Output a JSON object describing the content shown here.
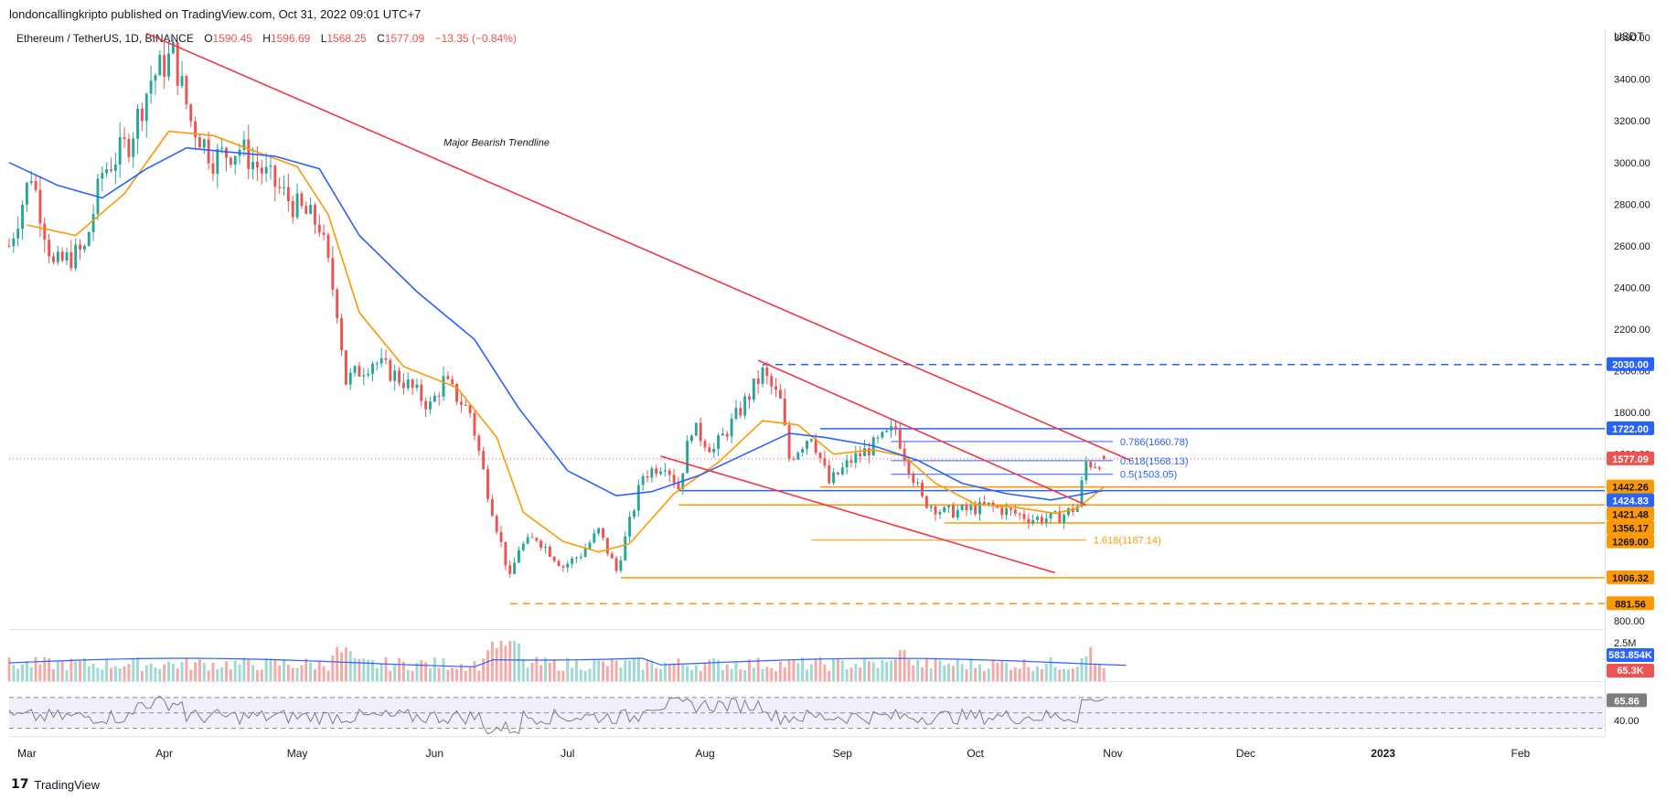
{
  "header": {
    "published_by": "londoncallingkripto published on TradingView.com, Oct 31, 2022 09:01 UTC+7"
  },
  "legend": {
    "symbol": "Ethereum / TetherUS, 1D, BINANCE",
    "open_label": "O",
    "open": "1590.45",
    "high_label": "H",
    "high": "1596.69",
    "low_label": "L",
    "low": "1568.25",
    "close_label": "C",
    "close": "1577.09",
    "change": "−13.35 (−0.84%)"
  },
  "y_axis": {
    "unit": "USDT",
    "ticks": [
      "3600.00",
      "3400.00",
      "3200.00",
      "3000.00",
      "2800.00",
      "2600.00",
      "2400.00",
      "2200.00",
      "2000.00",
      "1800.00",
      "1600.00",
      "800.00"
    ]
  },
  "price_badges": [
    {
      "value": "2030.00",
      "color": "#2962ff"
    },
    {
      "value": "1722.00",
      "color": "#2962ff"
    },
    {
      "value": "1577.09",
      "color": "#ef5350"
    },
    {
      "value": "1442.26",
      "color": "#ff9800"
    },
    {
      "value": "1424.83",
      "color": "#2962ff"
    },
    {
      "value": "1421.48",
      "color": "#ff9800"
    },
    {
      "value": "1356.17",
      "color": "#ff9800"
    },
    {
      "value": "1269.00",
      "color": "#ff9800"
    },
    {
      "value": "1006.32",
      "color": "#ff9800"
    },
    {
      "value": "881.56",
      "color": "#ff9800"
    }
  ],
  "annotations": {
    "trendline": "Major Bearish Trendline",
    "fib_786": "0.786(1660.78)",
    "fib_618": "0.618(1568.13)",
    "fib_5": "0.5(1503.05)",
    "fib_1618": "1.618(1187.14)"
  },
  "volume": {
    "tick": "2.5M",
    "ma_badge": "583.854K",
    "last_badge": "65.3K"
  },
  "rsi": {
    "value_badge": "65.86",
    "tick": "40.00"
  },
  "x_axis": {
    "labels": [
      "Mar",
      "Apr",
      "May",
      "Jun",
      "Jul",
      "Aug",
      "Sep",
      "Oct",
      "Nov",
      "Dec",
      "2023",
      "Feb"
    ]
  },
  "footer": {
    "logo": "17",
    "brand": "TradingView"
  },
  "colors": {
    "up": "#26a69a",
    "down": "#ef5350",
    "trendline": "#f23645",
    "ma_fast": "#ff9800",
    "ma_slow": "#2962ff",
    "fib": "#2962ff",
    "level_orange": "#ff9800",
    "rsi_line": "#7e7e7e"
  },
  "chart_data": {
    "type": "candlestick",
    "title": "Ethereum / TetherUS, 1D, BINANCE",
    "y_unit": "USDT",
    "ylim": [
      760,
      3640
    ],
    "x_range": [
      "2022-02-25",
      "2023-02-20"
    ],
    "x_tick_labels": [
      "Mar",
      "Apr",
      "May",
      "Jun",
      "Jul",
      "Aug",
      "Sep",
      "Oct",
      "Nov",
      "Dec",
      "2023",
      "Feb"
    ],
    "last_candle": {
      "date": "2022-10-30",
      "open": 1590.45,
      "high": 1596.69,
      "low": 1568.25,
      "close": 1577.09
    },
    "anchor_closes": [
      [
        "2022-02-25",
        2600
      ],
      [
        "2022-03-02",
        2950
      ],
      [
        "2022-03-07",
        2500
      ],
      [
        "2022-03-14",
        2580
      ],
      [
        "2022-03-18",
        2950
      ],
      [
        "2022-03-24",
        3100
      ],
      [
        "2022-03-29",
        3400
      ],
      [
        "2022-04-03",
        3520
      ],
      [
        "2022-04-07",
        3200
      ],
      [
        "2022-04-12",
        3020
      ],
      [
        "2022-04-18",
        3070
      ],
      [
        "2022-04-23",
        2960
      ],
      [
        "2022-04-30",
        2800
      ],
      [
        "2022-05-06",
        2700
      ],
      [
        "2022-05-10",
        2300
      ],
      [
        "2022-05-12",
        1950
      ],
      [
        "2022-05-18",
        2050
      ],
      [
        "2022-05-25",
        1950
      ],
      [
        "2022-05-31",
        1830
      ],
      [
        "2022-06-03",
        1950
      ],
      [
        "2022-06-09",
        1800
      ],
      [
        "2022-06-13",
        1420
      ],
      [
        "2022-06-18",
        1000
      ],
      [
        "2022-06-20",
        1150
      ],
      [
        "2022-06-24",
        1200
      ],
      [
        "2022-06-30",
        1060
      ],
      [
        "2022-07-04",
        1120
      ],
      [
        "2022-07-08",
        1230
      ],
      [
        "2022-07-12",
        1040
      ],
      [
        "2022-07-18",
        1500
      ],
      [
        "2022-07-23",
        1560
      ],
      [
        "2022-07-26",
        1440
      ],
      [
        "2022-07-29",
        1730
      ],
      [
        "2022-08-03",
        1620
      ],
      [
        "2022-08-08",
        1780
      ],
      [
        "2022-08-14",
        1990
      ],
      [
        "2022-08-18",
        1850
      ],
      [
        "2022-08-20",
        1580
      ],
      [
        "2022-08-25",
        1700
      ],
      [
        "2022-08-29",
        1460
      ],
      [
        "2022-09-03",
        1570
      ],
      [
        "2022-09-08",
        1640
      ],
      [
        "2022-09-13",
        1720
      ],
      [
        "2022-09-15",
        1600
      ],
      [
        "2022-09-19",
        1380
      ],
      [
        "2022-09-24",
        1320
      ],
      [
        "2022-09-29",
        1330
      ],
      [
        "2022-10-04",
        1350
      ],
      [
        "2022-10-09",
        1320
      ],
      [
        "2022-10-14",
        1290
      ],
      [
        "2022-10-19",
        1295
      ],
      [
        "2022-10-21",
        1310
      ],
      [
        "2022-10-24",
        1350
      ],
      [
        "2022-10-26",
        1560
      ],
      [
        "2022-10-28",
        1555
      ],
      [
        "2022-10-30",
        1577
      ]
    ],
    "moving_averages": [
      {
        "name": "",
        "color": "#ff9800",
        "points": [
          [
            "2022-03-01",
            2700
          ],
          [
            "2022-03-12",
            2650
          ],
          [
            "2022-03-23",
            2850
          ],
          [
            "2022-04-02",
            3150
          ],
          [
            "2022-04-12",
            3130
          ],
          [
            "2022-04-22",
            3050
          ],
          [
            "2022-05-01",
            2980
          ],
          [
            "2022-05-08",
            2750
          ],
          [
            "2022-05-15",
            2280
          ],
          [
            "2022-05-25",
            2020
          ],
          [
            "2022-06-06",
            1920
          ],
          [
            "2022-06-15",
            1680
          ],
          [
            "2022-06-21",
            1320
          ],
          [
            "2022-06-30",
            1180
          ],
          [
            "2022-07-08",
            1130
          ],
          [
            "2022-07-15",
            1170
          ],
          [
            "2022-07-25",
            1410
          ],
          [
            "2022-08-04",
            1560
          ],
          [
            "2022-08-14",
            1760
          ],
          [
            "2022-08-22",
            1740
          ],
          [
            "2022-08-30",
            1600
          ],
          [
            "2022-09-08",
            1620
          ],
          [
            "2022-09-15",
            1590
          ],
          [
            "2022-09-22",
            1460
          ],
          [
            "2022-10-01",
            1360
          ],
          [
            "2022-10-10",
            1345
          ],
          [
            "2022-10-19",
            1315
          ],
          [
            "2022-10-24",
            1340
          ],
          [
            "2022-10-30",
            1442
          ]
        ]
      },
      {
        "name": "",
        "color": "#2962ff",
        "points": [
          [
            "2022-02-25",
            3000
          ],
          [
            "2022-03-08",
            2890
          ],
          [
            "2022-03-18",
            2830
          ],
          [
            "2022-03-28",
            2970
          ],
          [
            "2022-04-06",
            3070
          ],
          [
            "2022-04-16",
            3050
          ],
          [
            "2022-04-26",
            3030
          ],
          [
            "2022-05-06",
            2970
          ],
          [
            "2022-05-15",
            2650
          ],
          [
            "2022-05-28",
            2380
          ],
          [
            "2022-06-10",
            2150
          ],
          [
            "2022-06-20",
            1820
          ],
          [
            "2022-07-01",
            1520
          ],
          [
            "2022-07-12",
            1400
          ],
          [
            "2022-07-20",
            1420
          ],
          [
            "2022-07-31",
            1500
          ],
          [
            "2022-08-10",
            1600
          ],
          [
            "2022-08-20",
            1700
          ],
          [
            "2022-08-28",
            1680
          ],
          [
            "2022-09-08",
            1640
          ],
          [
            "2022-09-18",
            1570
          ],
          [
            "2022-09-28",
            1460
          ],
          [
            "2022-10-08",
            1410
          ],
          [
            "2022-10-18",
            1380
          ],
          [
            "2022-10-30",
            1425
          ]
        ]
      }
    ],
    "trendlines": [
      {
        "name": "Major Bearish Trendline",
        "color": "#f23645",
        "from": [
          "2022-03-28",
          3620
        ],
        "to": [
          "2022-11-05",
          1570
        ]
      },
      {
        "name": "",
        "color": "#f23645",
        "from": [
          "2022-08-13",
          2050
        ],
        "to": [
          "2022-10-26",
          1355
        ]
      },
      {
        "name": "",
        "color": "#f23645",
        "from": [
          "2022-07-22",
          1590
        ],
        "to": [
          "2022-10-19",
          1030
        ]
      }
    ],
    "levels": [
      {
        "value": 2030.0,
        "color": "#2962ff",
        "style": "dashed",
        "from": "2022-08-14"
      },
      {
        "value": 1722.0,
        "color": "#2962ff",
        "style": "solid",
        "from": "2022-08-27"
      },
      {
        "value": 1442.26,
        "color": "#ff9800",
        "style": "solid",
        "from": "2022-08-27"
      },
      {
        "value": 1424.83,
        "color": "#2962ff",
        "style": "solid",
        "from": "2022-07-26"
      },
      {
        "value": 1356.17,
        "color": "#ff9800",
        "style": "solid",
        "from": "2022-07-26"
      },
      {
        "value": 1269.0,
        "color": "#ff9800",
        "style": "solid",
        "from": "2022-09-24"
      },
      {
        "value": 1006.32,
        "color": "#ff9800",
        "style": "solid",
        "from": "2022-07-13"
      },
      {
        "value": 881.56,
        "color": "#ff9800",
        "style": "dashed",
        "from": "2022-06-18"
      }
    ],
    "fibonacci": [
      {
        "label": "0.786(1660.78)",
        "value": 1660.78
      },
      {
        "label": "0.618(1568.13)",
        "value": 1568.13
      },
      {
        "label": "0.5(1503.05)",
        "value": 1503.05
      },
      {
        "label": "1.618(1187.14)",
        "value": 1187.14
      }
    ],
    "volume": {
      "max_tick": "2.5M",
      "moving_average": "583.854K",
      "last": "65.3K"
    },
    "rsi": {
      "last": 65.86,
      "bands": [
        70,
        50,
        30
      ]
    }
  }
}
